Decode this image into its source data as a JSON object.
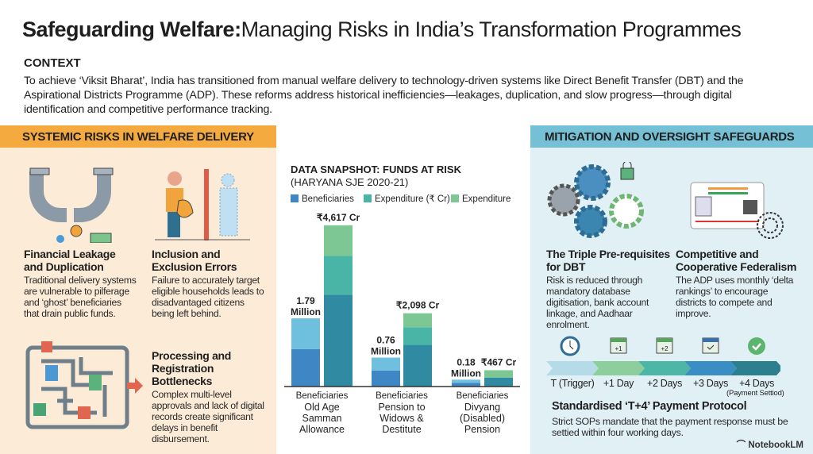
{
  "title": {
    "bold": "Safeguarding Welfare:",
    "rest": "Managing Risks in India’s Transformation Programmes"
  },
  "context": {
    "heading": "CONTEXT",
    "text": "To achieve ‘Viksit Bharat’, India has transitioned from manual welfare delivery to technology-driven systems like Direct Benefit Transfer (DBT) and the Aspirational Districts Programme (ADP). These reforms address historical inefficiencies—leakages, duplication, and slow progress—through digital identification and competitive performance tracking."
  },
  "left_panel": {
    "header": "SYSTEMIC RISKS IN WELFARE DELIVERY",
    "cards": [
      {
        "title": "Financial Leakage and Duplication",
        "text": "Traditional delivery systems are vulnerable to pilferage and ‘ghost’ beneficiaries that drain public funds.",
        "icon": "leaking-pipe-icon"
      },
      {
        "title": "Inclusion and Exclusion Errors",
        "text": "Failure to accurately target eligible households leads to disadvantaged citizens being left behind.",
        "icon": "excluded-citizen-icon"
      },
      {
        "title": "Processing and Registration Bottlenecks",
        "text": "Complex multi-level approvals and lack of digital records create significant delays in benefit disbursement.",
        "icon": "maze-icon"
      }
    ],
    "colors": {
      "header": "#f4aa3e",
      "background": "#fcebd6"
    }
  },
  "chart_data": {
    "type": "bar",
    "title": "DATA SNAPSHOT: FUNDS AT RISK",
    "subtitle": "(HARYANA SJE 2020-21)",
    "legend": [
      "Beneficiaries",
      "Expenditure (₹ Cr)",
      "Expenditure"
    ],
    "legend_placement": "top",
    "categories": [
      {
        "top": "Beneficiaries",
        "name": "Old Age Samman Allowance"
      },
      {
        "top": "Beneficiaries",
        "name": "Pension to Widows & Destitute"
      },
      {
        "top": "Beneficiaries",
        "name": "Divyang (Disabled) Pension"
      }
    ],
    "series": [
      {
        "name": "Beneficiaries",
        "unit": "Million",
        "values": [
          1.79,
          0.76,
          0.18
        ],
        "labels": [
          "1.79 Million",
          "0.76 Million",
          "0.18 Million"
        ],
        "colors": [
          "#3f86c4",
          "#6ec0de"
        ]
      },
      {
        "name": "Expenditure (₹ Cr)",
        "unit": "₹ Cr",
        "values": [
          4617,
          2098,
          467
        ],
        "labels": [
          "₹4,617 Cr",
          "₹2,098 Cr",
          "₹467 Cr"
        ],
        "colors": [
          "#2f8aa2",
          "#48b5a6",
          "#7dc795"
        ]
      }
    ],
    "grid": false
  },
  "right_panel": {
    "header": "MITIGATION AND OVERSIGHT SAFEGUARDS",
    "cards": [
      {
        "title": "The Triple Pre-requisites for DBT",
        "text": "Risk is reduced through mandatory database digitisation, bank account linkage, and Aadhaar enrolment.",
        "icon": "gears-icon"
      },
      {
        "title": "Competitive and Cooperative Federalism",
        "text": "The ADP uses monthly ‘delta rankings’ to encourage districts to compete and improve.",
        "icon": "id-card-fingerprint-icon"
      }
    ],
    "timeline": {
      "steps": [
        {
          "label": "T (Trigger)",
          "icon": "clock-icon",
          "badge": "",
          "color": "#b6dbe8"
        },
        {
          "label": "+1 Day",
          "icon": "calendar-icon",
          "badge": "+1",
          "color": "#8ccf9d"
        },
        {
          "label": "+2 Days",
          "icon": "calendar-icon",
          "badge": "+2",
          "color": "#4db6a6"
        },
        {
          "label": "+3 Days",
          "icon": "calendar-check-icon",
          "badge": "",
          "color": "#3b8ec3"
        },
        {
          "label": "+4 Days",
          "icon": "check-circle-icon",
          "badge": "",
          "color": "#2b7f8e"
        }
      ],
      "note": "(Payment Settiod)",
      "title": "Standardised ‘T+4’ Payment Protocol",
      "text": "Strict SOPs mandate that the payment response must be settied within four working days."
    },
    "colors": {
      "header": "#76c0d6",
      "background": "#e1f0f5"
    }
  },
  "brand": "NotebookLM"
}
